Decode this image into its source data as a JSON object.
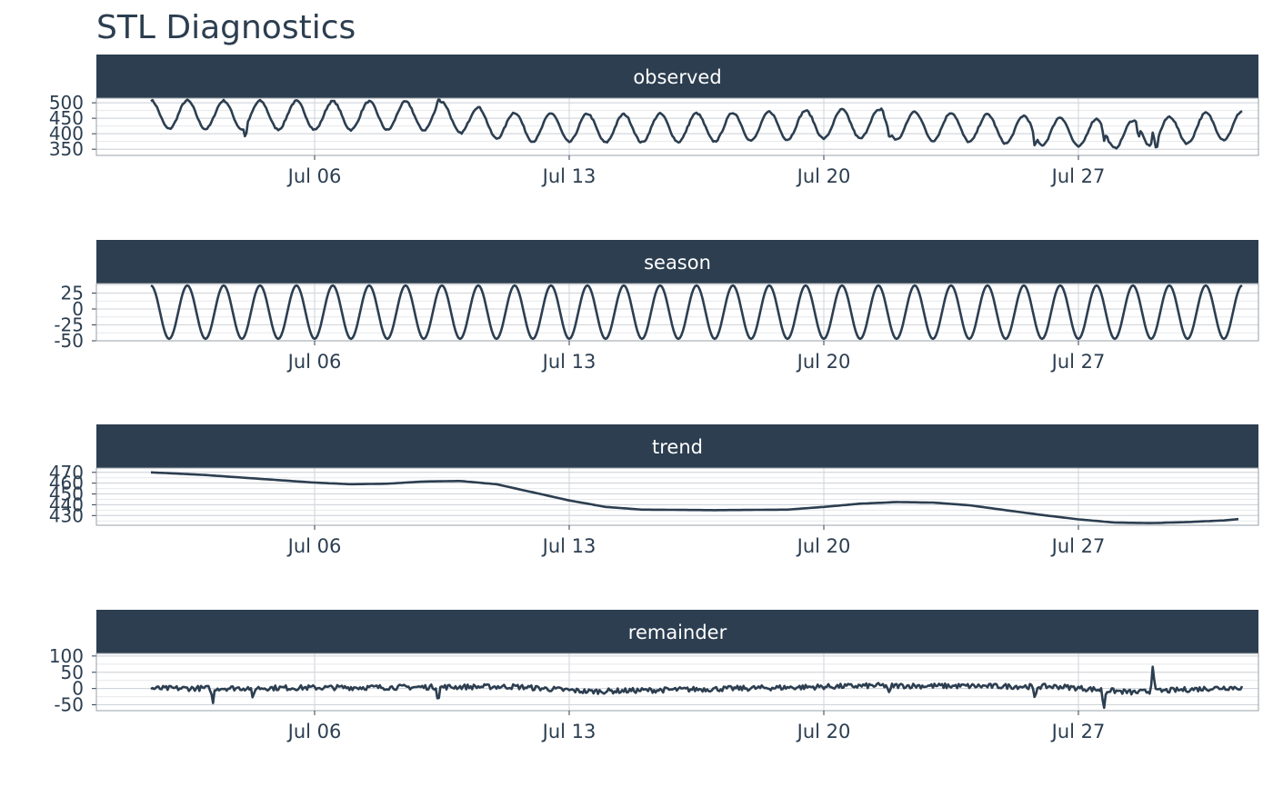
{
  "title": "STL Diagnostics",
  "colors": {
    "line": "#2c3e50",
    "strip": "#2c3e50",
    "strip_text": "#ffffff",
    "grid_major": "#cfd3d9",
    "grid_minor": "#e6e8eb",
    "panel_border": "#9aa1a9",
    "text": "#2c3e50"
  },
  "chart_data": {
    "type": "line",
    "layout": "faceted",
    "x_unit": "date",
    "x_range": [
      "Jul 01 12:00",
      "Jul 31 12:00"
    ],
    "x_ticks": [
      {
        "date": "Jul 06",
        "label": "Jul 06"
      },
      {
        "date": "Jul 13",
        "label": "Jul 13"
      },
      {
        "date": "Jul 20",
        "label": "Jul 20"
      },
      {
        "date": "Jul 27",
        "label": "Jul 27"
      }
    ],
    "grid": true,
    "panels": [
      {
        "name": "observed",
        "ylim": [
          330,
          515
        ],
        "y_ticks": [
          350,
          400,
          450,
          500
        ],
        "y_tick_labels": [
          "350",
          "400",
          "450",
          "500"
        ],
        "description": "daily cycle mean 460 amp 45 with downward drift",
        "base_mean": 462,
        "amplitude": 46,
        "drift": [
          [
            0,
            0
          ],
          [
            8,
            -5
          ],
          [
            10,
            -40
          ],
          [
            13,
            -45
          ],
          [
            16,
            -40
          ],
          [
            19,
            -30
          ],
          [
            22,
            -40
          ],
          [
            25,
            -55
          ],
          [
            27,
            -65
          ],
          [
            29.5,
            -35
          ]
        ],
        "spikes": [
          [
            2.6,
            -40
          ],
          [
            7.9,
            25
          ],
          [
            20.1,
            20
          ],
          [
            20.3,
            -30
          ],
          [
            24.3,
            -40
          ],
          [
            26.2,
            -40
          ],
          [
            27.15,
            -40
          ],
          [
            27.55,
            50
          ],
          [
            27.65,
            -30
          ]
        ]
      },
      {
        "name": "season",
        "ylim": [
          -50,
          40
        ],
        "y_ticks": [
          -50,
          -25,
          0,
          25
        ],
        "y_tick_labels": [
          "-50",
          "-25",
          "0",
          "25"
        ],
        "description": "pure daily sinusoid amplitude about 45",
        "base_mean": -5,
        "amplitude": 42,
        "drift": [],
        "spikes": []
      },
      {
        "name": "trend",
        "ylim": [
          421,
          474
        ],
        "y_ticks": [
          430,
          440,
          450,
          460,
          470
        ],
        "y_tick_labels": [
          "430",
          "440",
          "450",
          "460",
          "470"
        ],
        "points": [
          {
            "day": 0.0,
            "value": 470
          },
          {
            "day": 1.5,
            "value": 467.5
          },
          {
            "day": 3.0,
            "value": 464
          },
          {
            "day": 4.5,
            "value": 460.5
          },
          {
            "day": 5.5,
            "value": 459
          },
          {
            "day": 6.5,
            "value": 459.5
          },
          {
            "day": 7.5,
            "value": 461.5
          },
          {
            "day": 8.5,
            "value": 462
          },
          {
            "day": 9.5,
            "value": 459
          },
          {
            "day": 10.5,
            "value": 451.5
          },
          {
            "day": 11.5,
            "value": 444
          },
          {
            "day": 12.5,
            "value": 438
          },
          {
            "day": 13.5,
            "value": 435.5
          },
          {
            "day": 15.5,
            "value": 435
          },
          {
            "day": 17.5,
            "value": 435.5
          },
          {
            "day": 18.5,
            "value": 438
          },
          {
            "day": 19.5,
            "value": 441
          },
          {
            "day": 20.5,
            "value": 442.5
          },
          {
            "day": 21.5,
            "value": 442
          },
          {
            "day": 22.5,
            "value": 439.5
          },
          {
            "day": 23.5,
            "value": 435
          },
          {
            "day": 24.5,
            "value": 430.5
          },
          {
            "day": 25.5,
            "value": 426.5
          },
          {
            "day": 26.5,
            "value": 423.5
          },
          {
            "day": 27.5,
            "value": 423
          },
          {
            "day": 28.5,
            "value": 424
          },
          {
            "day": 29.5,
            "value": 425.5
          },
          {
            "day": 30.0,
            "value": 427
          }
        ]
      },
      {
        "name": "remainder",
        "ylim": [
          -68,
          108
        ],
        "y_ticks": [
          -50,
          0,
          50,
          100
        ],
        "y_tick_labels": [
          "-50",
          "0",
          "50",
          "100"
        ],
        "description": "noise around 0 with spikes",
        "base_mean": 0,
        "amplitude": 8,
        "drift": [
          [
            0,
            0
          ],
          [
            10,
            10
          ],
          [
            12,
            -15
          ],
          [
            20,
            15
          ],
          [
            25,
            10
          ],
          [
            27,
            -20
          ],
          [
            29.5,
            5
          ]
        ],
        "spikes": [
          [
            1.7,
            -50
          ],
          [
            2.8,
            -40
          ],
          [
            7.9,
            -45
          ],
          [
            20.3,
            -30
          ],
          [
            24.3,
            -45
          ],
          [
            26.2,
            -60
          ],
          [
            27.55,
            95
          ]
        ]
      }
    ]
  }
}
